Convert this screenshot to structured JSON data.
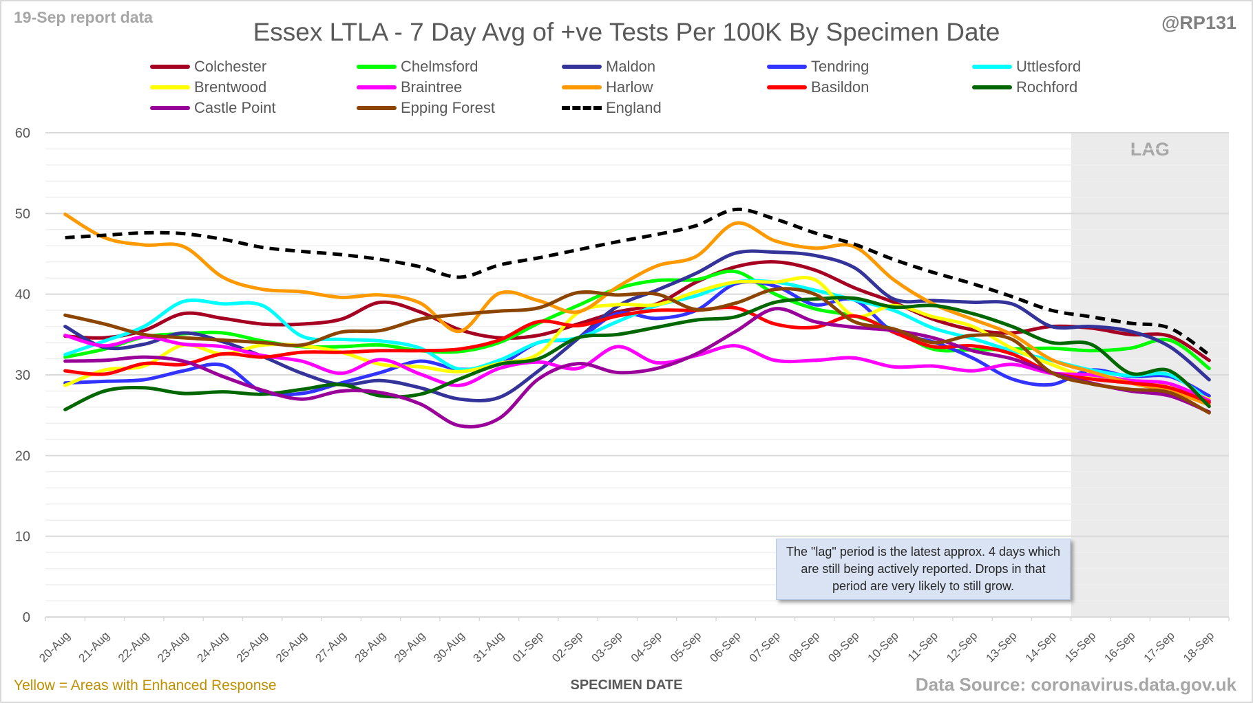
{
  "report_label": "19-Sep report data",
  "handle": "@RP131",
  "footer": {
    "note_left": "Yellow = Areas with Enhanced Response",
    "source": "Data Source: coronavirus.data.gov.uk"
  },
  "annotation": "The \"lag\" period is the latest approx. 4 days which are still being actively reported.  Drops in that period are very likely to still grow.",
  "chart_data": {
    "type": "line",
    "title": "Essex LTLA - 7 Day Avg of +ve Tests Per 100K By Specimen Date",
    "xlabel": "SPECIMEN DATE",
    "ylabel": "",
    "ylim": [
      0,
      60
    ],
    "yticks": [
      0,
      10,
      20,
      30,
      40,
      50,
      60
    ],
    "grid": true,
    "legend_position": "top",
    "lag_region": {
      "label": "LAG",
      "from": "15-Sep",
      "to": "18-Sep"
    },
    "categories": [
      "20-Aug",
      "21-Aug",
      "22-Aug",
      "23-Aug",
      "24-Aug",
      "25-Aug",
      "26-Aug",
      "27-Aug",
      "28-Aug",
      "29-Aug",
      "30-Aug",
      "31-Aug",
      "01-Sep",
      "02-Sep",
      "03-Sep",
      "04-Sep",
      "05-Sep",
      "06-Sep",
      "07-Sep",
      "08-Sep",
      "09-Sep",
      "10-Sep",
      "11-Sep",
      "12-Sep",
      "13-Sep",
      "14-Sep",
      "15-Sep",
      "16-Sep",
      "17-Sep",
      "18-Sep"
    ],
    "series": [
      {
        "name": "Colchester",
        "color": "#a50021",
        "dashed": false,
        "values": [
          34.8,
          34.6,
          35.5,
          37.6,
          37.0,
          36.3,
          36.3,
          36.9,
          39.0,
          37.8,
          35.6,
          34.6,
          34.9,
          36.3,
          37.8,
          38.8,
          41.5,
          43.4,
          44.0,
          43.0,
          40.8,
          39.0,
          36.9,
          35.6,
          35.2,
          36.0,
          35.8,
          35.0,
          34.8,
          31.8
        ]
      },
      {
        "name": "Chelmsford",
        "color": "#00ff00",
        "dashed": false,
        "values": [
          32.2,
          33.2,
          34.7,
          35.1,
          35.2,
          34.2,
          33.5,
          33.5,
          33.7,
          33.0,
          32.9,
          34.0,
          36.4,
          38.6,
          40.7,
          41.7,
          41.8,
          42.8,
          40.0,
          38.2,
          37.3,
          35.6,
          33.2,
          33.1,
          33.2,
          33.3,
          33.0,
          33.3,
          34.3,
          30.8
        ]
      },
      {
        "name": "Maldon",
        "color": "#333399",
        "dashed": false,
        "values": [
          36.0,
          33.4,
          33.8,
          35.2,
          34.1,
          32.3,
          30.2,
          28.8,
          29.3,
          28.4,
          27.0,
          27.2,
          30.5,
          34.5,
          38.5,
          40.5,
          42.6,
          45.1,
          45.2,
          44.8,
          43.3,
          39.4,
          39.2,
          39.0,
          38.8,
          36.0,
          36.0,
          35.4,
          33.5,
          29.4
        ]
      },
      {
        "name": "Tendring",
        "color": "#3333ff",
        "dashed": false,
        "values": [
          29.0,
          29.2,
          29.4,
          30.5,
          31.2,
          27.9,
          27.7,
          29.0,
          30.3,
          31.7,
          30.7,
          31.3,
          34.0,
          34.6,
          37.6,
          37.0,
          38.0,
          41.3,
          41.0,
          38.7,
          39.3,
          35.3,
          34.1,
          32.1,
          29.5,
          28.8,
          30.6,
          29.8,
          29.8,
          27.4
        ]
      },
      {
        "name": "Uttlesford",
        "color": "#00ffff",
        "dashed": false,
        "values": [
          32.5,
          34.2,
          36.0,
          39.1,
          38.8,
          38.6,
          34.8,
          34.4,
          34.2,
          33.3,
          30.7,
          31.8,
          34.0,
          34.6,
          36.6,
          38.6,
          39.8,
          41.5,
          41.5,
          40.5,
          39.3,
          38.0,
          35.8,
          34.5,
          33.0,
          31.8,
          30.6,
          29.9,
          30.0,
          26.8
        ]
      },
      {
        "name": "Brentwood",
        "color": "#ffff00",
        "dashed": false,
        "values": [
          28.7,
          30.6,
          31.1,
          33.7,
          32.6,
          33.7,
          33.6,
          32.8,
          31.3,
          31.0,
          30.4,
          31.4,
          32.6,
          37.7,
          38.7,
          38.7,
          40.3,
          41.5,
          41.5,
          41.8,
          37.3,
          38.6,
          37.2,
          36.0,
          33.3,
          31.3,
          29.6,
          29.1,
          28.5,
          27.0
        ]
      },
      {
        "name": "Braintree",
        "color": "#ff00ff",
        "dashed": false,
        "values": [
          34.9,
          33.6,
          34.7,
          33.8,
          33.5,
          32.4,
          31.7,
          30.2,
          31.9,
          30.1,
          28.7,
          30.8,
          31.6,
          30.8,
          33.5,
          31.5,
          32.4,
          33.6,
          31.8,
          31.8,
          32.1,
          31.0,
          31.1,
          30.5,
          31.3,
          30.2,
          30.0,
          29.3,
          28.9,
          26.8
        ]
      },
      {
        "name": "Harlow",
        "color": "#ff9900",
        "dashed": false,
        "values": [
          49.9,
          47.0,
          46.1,
          45.9,
          42.1,
          40.6,
          40.3,
          39.6,
          39.9,
          38.9,
          35.4,
          40.1,
          39.2,
          37.8,
          40.9,
          43.5,
          44.7,
          48.8,
          46.6,
          45.7,
          45.9,
          41.8,
          38.8,
          36.9,
          35.0,
          31.9,
          30.4,
          29.0,
          28.0,
          26.3
        ]
      },
      {
        "name": "Basildon",
        "color": "#ff0000",
        "dashed": false,
        "values": [
          30.5,
          30.1,
          31.4,
          31.3,
          32.6,
          32.2,
          32.8,
          32.8,
          33.0,
          33.0,
          33.2,
          34.3,
          36.6,
          36.1,
          37.3,
          38.0,
          38.0,
          38.3,
          36.3,
          35.9,
          37.3,
          35.3,
          33.5,
          33.6,
          32.6,
          30.3,
          29.5,
          29.0,
          28.4,
          26.6
        ]
      },
      {
        "name": "Rochford",
        "color": "#006600",
        "dashed": false,
        "values": [
          25.7,
          28.0,
          28.4,
          27.7,
          27.9,
          27.6,
          28.2,
          28.8,
          27.4,
          27.6,
          29.5,
          31.3,
          32.0,
          34.6,
          35.0,
          35.9,
          36.8,
          37.2,
          39.0,
          39.4,
          39.5,
          38.4,
          38.6,
          37.6,
          36.0,
          34.0,
          33.8,
          30.2,
          30.5,
          26.1
        ]
      },
      {
        "name": "Castle Point",
        "color": "#990099",
        "dashed": false,
        "values": [
          31.7,
          31.8,
          32.2,
          31.7,
          29.8,
          28.1,
          27.0,
          28.0,
          27.8,
          26.4,
          23.7,
          24.6,
          29.5,
          31.4,
          30.3,
          30.8,
          32.6,
          35.4,
          38.2,
          36.6,
          35.9,
          35.5,
          34.6,
          33.0,
          32.0,
          30.3,
          29.0,
          28.0,
          27.4,
          25.4
        ]
      },
      {
        "name": "Epping Forest",
        "color": "#8b4500",
        "dashed": false,
        "values": [
          37.4,
          36.3,
          35.0,
          34.6,
          34.3,
          34.0,
          33.7,
          35.3,
          35.5,
          36.9,
          37.5,
          37.9,
          38.3,
          40.2,
          39.9,
          40.0,
          38.1,
          38.9,
          40.6,
          40.0,
          36.6,
          35.7,
          34.0,
          34.9,
          34.4,
          30.3,
          28.9,
          28.2,
          27.8,
          25.3
        ]
      },
      {
        "name": "England",
        "color": "#000000",
        "dashed": true,
        "values": [
          47.0,
          47.3,
          47.6,
          47.5,
          46.8,
          45.8,
          45.3,
          44.9,
          44.3,
          43.4,
          42.1,
          43.6,
          44.5,
          45.5,
          46.5,
          47.4,
          48.5,
          50.5,
          49.3,
          47.6,
          46.2,
          44.3,
          42.7,
          41.3,
          39.7,
          38.0,
          37.2,
          36.4,
          35.8,
          32.5
        ]
      }
    ]
  }
}
